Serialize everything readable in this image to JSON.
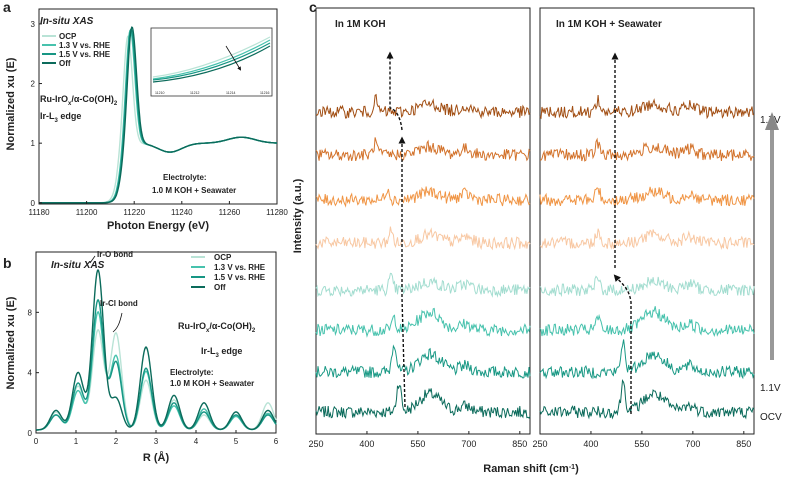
{
  "colors": {
    "ocp": "#b9e3d6",
    "v13": "#47c2ad",
    "v15": "#179684",
    "off": "#0b6b5b",
    "axis": "#222222",
    "raman": [
      "#0b6b5b",
      "#1a9985",
      "#47c2ad",
      "#a3ddd0",
      "#f8c8a3",
      "#f09545",
      "#d3732c",
      "#a24f14"
    ]
  },
  "panel_a": {
    "letter": "a",
    "title": "In-situ XAS",
    "legend": [
      "OCP",
      "1.3 V vs. RHE",
      "1.5 V vs. RHE",
      "Off"
    ],
    "sample_prefix": "Ru-IrO",
    "sample_x": "x",
    "sample_suffix": "/α-Co(OH)",
    "sample_sub": "2",
    "edge_prefix": "Ir-L",
    "edge_sub": "3",
    "edge_suffix": " edge",
    "electrolyte_label": "Electrolyte:",
    "electrolyte_value": "1.0 M KOH + Seawater",
    "inset_ticks": [
      "11210",
      "11212",
      "11214",
      "11216"
    ]
  },
  "panel_b": {
    "letter": "b",
    "title": "In-situ XAS",
    "legend": [
      "OCP",
      "1.3 V vs. RHE",
      "1.5 V vs. RHE",
      "Off"
    ],
    "annotation_iro": "Ir-O bond",
    "annotation_ircl": "Ir-Cl bond",
    "sample_prefix": "Ru-IrO",
    "sample_x": "x",
    "sample_suffix": "/α-Co(OH)",
    "sample_sub": "2",
    "edge_prefix": "Ir-L",
    "edge_sub": "3",
    "edge_suffix": " edge",
    "electrolyte_label": "Electrolyte:",
    "electrolyte_value": "1.0 M KOH + Seawater"
  },
  "panel_c": {
    "letter": "c",
    "left_title": "In 1M KOH",
    "right_title": "In 1M KOH + Seawater",
    "label_top": "1.7V",
    "label_mid": "1.1V",
    "label_bottom": "OCV"
  },
  "chart_data": [
    {
      "type": "line",
      "panel": "a",
      "title": "In-situ XAS",
      "xlabel": "Photon Energy (eV)",
      "ylabel": "Normalized xu (E)",
      "xlim": [
        11180,
        11280
      ],
      "ylim": [
        -0.02,
        3.25
      ],
      "xticks": [
        11180,
        11200,
        11220,
        11240,
        11260,
        11280
      ],
      "yticks": [
        0,
        1,
        2,
        3
      ],
      "series": [
        {
          "name": "OCP",
          "edge": 11213.0,
          "peak": 2.85,
          "peak_at": 11217.3
        },
        {
          "name": "1.3 V vs. RHE",
          "edge": 11214.0,
          "peak": 2.95,
          "peak_at": 11218.3
        },
        {
          "name": "1.5 V vs. RHE",
          "edge": 11214.3,
          "peak": 2.97,
          "peak_at": 11218.6
        },
        {
          "name": "Off",
          "edge": 11214.6,
          "peak": 3.0,
          "peak_at": 11219.0
        }
      ]
    },
    {
      "type": "line",
      "panel": "b",
      "xlabel": "R (Å)",
      "ylabel": "Normalized xu (E)",
      "xlim": [
        0,
        6
      ],
      "ylim": [
        0,
        12
      ],
      "xticks": [
        0,
        1,
        2,
        3,
        4,
        5,
        6
      ],
      "yticks": [
        0,
        4,
        8
      ],
      "series": [
        {
          "name": "OCP",
          "peaks": [
            [
              0.5,
              1.2
            ],
            [
              1.05,
              2.9
            ],
            [
              1.55,
              6.6
            ],
            [
              2.0,
              6.4
            ],
            [
              2.75,
              3.3
            ],
            [
              3.45,
              2.0
            ],
            [
              4.2,
              1.0
            ],
            [
              5.0,
              1.0
            ],
            [
              5.8,
              1.8
            ]
          ]
        },
        {
          "name": "1.3 V vs. RHE",
          "peaks": [
            [
              0.5,
              1.0
            ],
            [
              1.05,
              2.6
            ],
            [
              1.55,
              7.8
            ],
            [
              2.0,
              4.9
            ],
            [
              2.75,
              3.9
            ],
            [
              3.45,
              1.6
            ],
            [
              4.2,
              1.4
            ],
            [
              5.0,
              0.9
            ],
            [
              5.8,
              1.1
            ]
          ]
        },
        {
          "name": "1.5 V vs. RHE",
          "peaks": [
            [
              0.5,
              1.0
            ],
            [
              1.05,
              3.1
            ],
            [
              1.55,
              8.6
            ],
            [
              2.0,
              4.5
            ],
            [
              2.75,
              4.1
            ],
            [
              3.45,
              1.8
            ],
            [
              4.2,
              1.2
            ],
            [
              5.0,
              1.0
            ],
            [
              5.8,
              1.0
            ]
          ]
        },
        {
          "name": "Off",
          "peaks": [
            [
              0.5,
              1.3
            ],
            [
              1.05,
              3.8
            ],
            [
              1.55,
              10.6
            ],
            [
              2.0,
              2.1
            ],
            [
              2.75,
              5.5
            ],
            [
              3.45,
              2.3
            ],
            [
              4.2,
              1.8
            ],
            [
              5.0,
              1.2
            ],
            [
              5.8,
              1.3
            ]
          ]
        }
      ]
    },
    {
      "type": "line",
      "panel": "c",
      "xlabel": "Raman shift (cm⁻¹)",
      "ylabel": "Intensity (a.u.)",
      "xlim": [
        250,
        880
      ],
      "xticks": [
        250,
        400,
        550,
        700,
        850
      ],
      "series_count": 8,
      "series_order": "bottom to top: OCV, 1.1V ... 1.7V",
      "peaks_koh_cm1": [
        494,
        480,
        480,
        470,
        470,
        460,
        425,
        425
      ],
      "peaks_seawater_cm1": [
        495,
        495,
        420,
        420,
        420,
        420,
        420,
        420
      ]
    }
  ],
  "labels": {
    "a_xlabel": "Photon Energy (eV)",
    "a_ylabel": "Normalized xu (E)",
    "b_xlabel": "R (Å)",
    "b_ylabel": "Normalized xu (E)",
    "c_xlabel_main": "Raman shift (cm",
    "c_xlabel_sup": "-1",
    "c_xlabel_end": ")",
    "c_ylabel": "Intensity (a.u.)"
  }
}
